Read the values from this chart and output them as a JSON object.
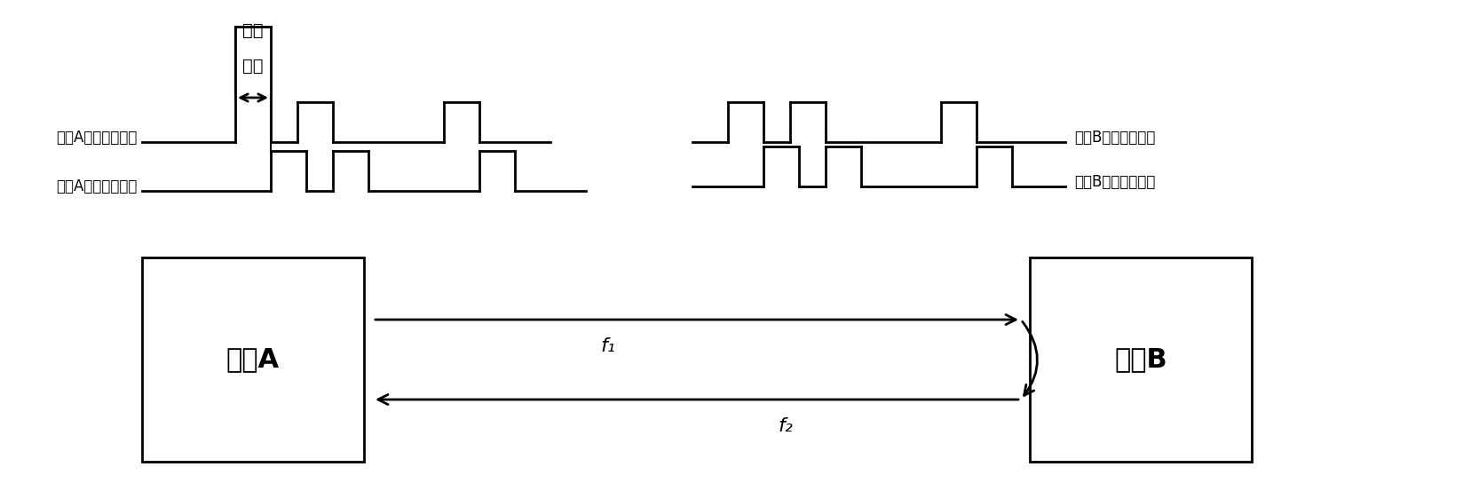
{
  "bg_color": "#ffffff",
  "text_color": "#000000",
  "label_A_transmit": "设备A发射测距伪码",
  "label_A_receive": "设备A接收测距伪码",
  "label_B_receive": "设备B接收测距伪码",
  "label_B_transmit": "设备B转发测距伪码",
  "label_propagation_top": "传播",
  "label_propagation_bot": "时延",
  "box_A_label": "设备A",
  "box_B_label": "设备B",
  "f1_label": "f₁",
  "f2_label": "f₂",
  "signal_A_tx": {
    "x": [
      0.0,
      0.0,
      0.06,
      0.06,
      0.1,
      0.1,
      0.16,
      0.16,
      0.26,
      0.26,
      0.3,
      0.3,
      0.36,
      0.36,
      0.5,
      0.5,
      0.54,
      0.54,
      0.6,
      0.6
    ],
    "y": [
      0.0,
      0.0,
      0.0,
      1.0,
      1.0,
      0.0,
      0.0,
      1.0,
      1.0,
      0.0,
      0.0,
      0.0,
      0.0,
      0.0,
      0.0,
      1.0,
      1.0,
      0.0,
      0.0,
      0.0
    ]
  },
  "signal_A_rx": {
    "x": [
      0.05,
      0.05,
      0.11,
      0.11,
      0.15,
      0.15,
      0.21,
      0.21,
      0.31,
      0.31,
      0.35,
      0.35,
      0.41,
      0.41,
      0.55,
      0.55,
      0.59,
      0.59,
      0.65,
      0.65
    ],
    "y": [
      0.0,
      0.0,
      0.0,
      1.0,
      1.0,
      0.0,
      0.0,
      1.0,
      1.0,
      0.0,
      0.0,
      0.0,
      0.0,
      0.0,
      0.0,
      1.0,
      1.0,
      0.0,
      0.0,
      0.0
    ]
  },
  "signal_B_rx": {
    "x": [
      0.35,
      0.35,
      0.41,
      0.41,
      0.45,
      0.45,
      0.51,
      0.51,
      0.61,
      0.61,
      0.65,
      0.65,
      0.71,
      0.71,
      0.85,
      0.85,
      0.89,
      0.89,
      0.95,
      0.95
    ],
    "y": [
      0.0,
      0.0,
      0.0,
      1.0,
      1.0,
      0.0,
      0.0,
      1.0,
      1.0,
      0.0,
      0.0,
      0.0,
      0.0,
      0.0,
      0.0,
      1.0,
      1.0,
      0.0,
      0.0,
      0.0
    ]
  },
  "signal_B_tx": {
    "x": [
      0.35,
      0.35,
      0.41,
      0.41,
      0.45,
      0.45,
      0.51,
      0.51,
      0.61,
      0.61,
      0.65,
      0.65,
      0.71,
      0.71,
      0.85,
      0.85,
      0.89,
      0.89,
      0.95,
      0.95
    ],
    "y": [
      0.0,
      0.0,
      0.0,
      1.0,
      1.0,
      0.0,
      0.0,
      1.0,
      1.0,
      0.0,
      0.0,
      0.0,
      0.0,
      0.0,
      0.0,
      1.0,
      1.0,
      0.0,
      0.0,
      0.0
    ]
  }
}
